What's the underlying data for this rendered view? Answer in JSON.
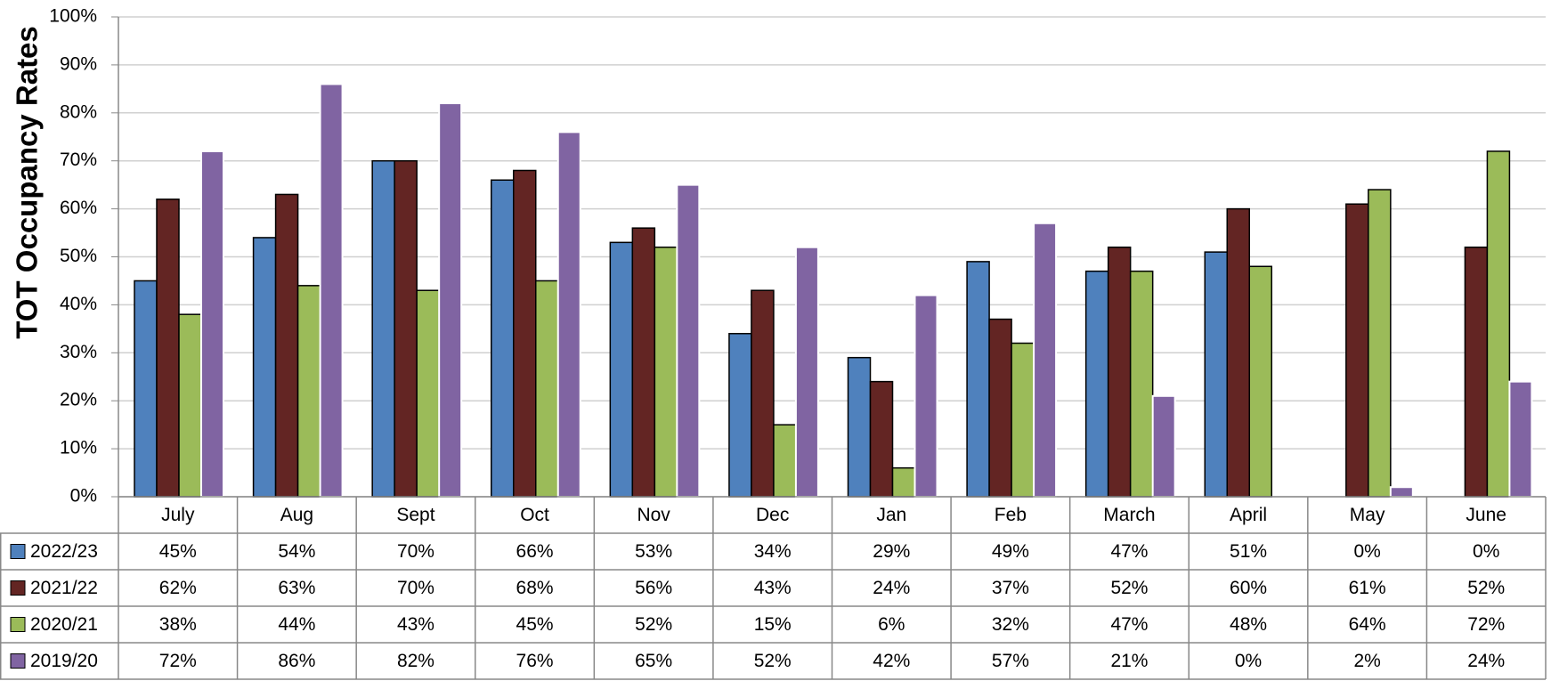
{
  "chart_data": {
    "type": "bar",
    "y_label": "TOT Occupancy Rates",
    "categories": [
      "July",
      "Aug",
      "Sept",
      "Oct",
      "Nov",
      "Dec",
      "Jan",
      "Feb",
      "March",
      "April",
      "May",
      "June"
    ],
    "series": [
      {
        "name": "2022/23",
        "color": "#4f81bd",
        "values": [
          45,
          54,
          70,
          66,
          53,
          34,
          29,
          49,
          47,
          51,
          0,
          0
        ],
        "value_labels": [
          "45%",
          "54%",
          "70%",
          "66%",
          "53%",
          "34%",
          "29%",
          "49%",
          "47%",
          "51%",
          "0%",
          "0%"
        ]
      },
      {
        "name": "2021/22",
        "color": "#632523",
        "values": [
          62,
          63,
          70,
          68,
          56,
          43,
          24,
          37,
          52,
          60,
          61,
          52
        ],
        "value_labels": [
          "62%",
          "63%",
          "70%",
          "68%",
          "56%",
          "43%",
          "24%",
          "37%",
          "52%",
          "60%",
          "61%",
          "52%"
        ]
      },
      {
        "name": "2020/21",
        "color": "#9bbb59",
        "values": [
          38,
          44,
          43,
          45,
          52,
          15,
          6,
          32,
          47,
          48,
          64,
          72
        ],
        "value_labels": [
          "38%",
          "44%",
          "43%",
          "45%",
          "52%",
          "15%",
          "6%",
          "32%",
          "47%",
          "48%",
          "64%",
          "72%"
        ]
      },
      {
        "name": "2019/20",
        "color": "#8064a2",
        "values": [
          72,
          86,
          82,
          76,
          65,
          52,
          42,
          57,
          21,
          0,
          2,
          24
        ],
        "value_labels": [
          "72%",
          "86%",
          "82%",
          "76%",
          "65%",
          "52%",
          "42%",
          "57%",
          "21%",
          "0%",
          "2%",
          "24%"
        ]
      }
    ],
    "ylim": [
      0,
      100
    ],
    "yticks": [
      {
        "value": 0,
        "label": "0%"
      },
      {
        "value": 10,
        "label": "10%"
      },
      {
        "value": 20,
        "label": "20%"
      },
      {
        "value": 30,
        "label": "30%"
      },
      {
        "value": 40,
        "label": "40%"
      },
      {
        "value": 50,
        "label": "50%"
      },
      {
        "value": 60,
        "label": "60%"
      },
      {
        "value": 70,
        "label": "70%"
      },
      {
        "value": 80,
        "label": "80%"
      },
      {
        "value": 90,
        "label": "90%"
      },
      {
        "value": 100,
        "label": "100%"
      }
    ],
    "grid": true
  }
}
